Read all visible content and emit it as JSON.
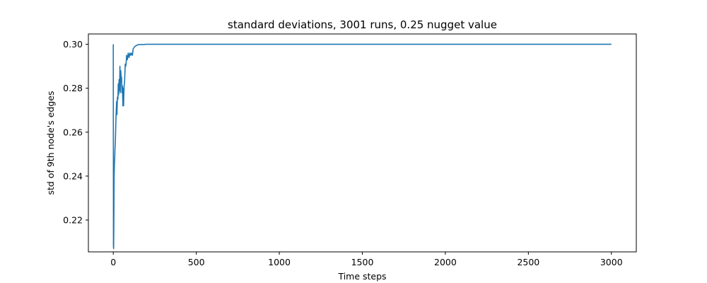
{
  "chart_data": {
    "type": "line",
    "title": "standard deviations, 3001 runs, 0.25 nugget value",
    "xlabel": "Time steps",
    "ylabel": "std of 9th node's edges",
    "xlim": [
      -150,
      3150
    ],
    "ylim": [
      0.2055,
      0.3047
    ],
    "xticks": [
      0,
      500,
      1000,
      1500,
      2000,
      2500,
      3000
    ],
    "xtick_labels": [
      "0",
      "500",
      "1000",
      "1500",
      "2000",
      "2500",
      "3000"
    ],
    "yticks": [
      0.22,
      0.24,
      0.26,
      0.28,
      0.3
    ],
    "ytick_labels": [
      "0.22",
      "0.24",
      "0.26",
      "0.28",
      "0.30"
    ],
    "grid": false,
    "series": [
      {
        "color": "#1f77b4",
        "x": [
          0,
          1,
          2,
          3,
          4,
          5,
          6,
          7,
          8,
          10,
          12,
          14,
          16,
          18,
          20,
          22,
          25,
          28,
          30,
          32,
          35,
          38,
          40,
          42,
          45,
          48,
          50,
          52,
          55,
          58,
          60,
          62,
          65,
          68,
          70,
          72,
          75,
          78,
          80,
          85,
          90,
          95,
          100,
          105,
          110,
          115,
          120,
          130,
          140,
          150,
          160,
          180,
          200,
          250,
          300,
          400,
          600,
          1000,
          1500,
          2000,
          2500,
          3000
        ],
        "y": [
          0.3,
          0.208,
          0.207,
          0.214,
          0.226,
          0.24,
          0.243,
          0.246,
          0.247,
          0.252,
          0.255,
          0.26,
          0.266,
          0.27,
          0.274,
          0.268,
          0.276,
          0.275,
          0.282,
          0.277,
          0.284,
          0.279,
          0.29,
          0.278,
          0.288,
          0.284,
          0.285,
          0.278,
          0.281,
          0.272,
          0.28,
          0.272,
          0.281,
          0.283,
          0.287,
          0.291,
          0.29,
          0.292,
          0.295,
          0.293,
          0.296,
          0.294,
          0.296,
          0.295,
          0.296,
          0.295,
          0.298,
          0.299,
          0.2995,
          0.2998,
          0.2999,
          0.2999,
          0.3,
          0.3,
          0.3,
          0.3,
          0.3,
          0.3,
          0.3,
          0.3,
          0.3,
          0.3
        ]
      }
    ]
  }
}
